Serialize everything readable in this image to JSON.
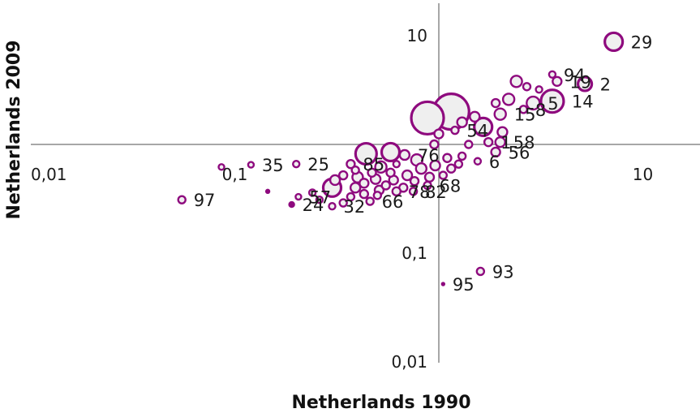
{
  "chart_data": {
    "type": "scatter",
    "title": "",
    "xlabel": "Netherlands 1990",
    "ylabel": "Netherlands 2009",
    "x_scale": "log",
    "y_scale": "log",
    "xlim": [
      0.01,
      20
    ],
    "ylim": [
      0.01,
      13
    ],
    "x_ticks": [
      {
        "value": 0.01,
        "label": "0,01"
      },
      {
        "value": 0.1,
        "label": "0,1"
      },
      {
        "value": 10,
        "label": "10"
      }
    ],
    "y_ticks": [
      {
        "value": 10,
        "label": "10"
      },
      {
        "value": 0.1,
        "label": "0,1"
      },
      {
        "value": 0.01,
        "label": "0,01"
      }
    ],
    "grid": false,
    "legend": "none",
    "marker_color": "#8e0a7e",
    "marker_fill": "#efefef",
    "points": [
      {
        "label": "29",
        "x": 7.2,
        "y": 8.8,
        "size": 22
      },
      {
        "label": "2",
        "x": 5.2,
        "y": 3.6,
        "size": 17
      },
      {
        "label": "94",
        "x": 3.6,
        "y": 4.4,
        "size": 8
      },
      {
        "label": "19",
        "x": 3.8,
        "y": 3.8,
        "size": 11
      },
      {
        "label": "",
        "x": 3.1,
        "y": 3.2,
        "size": 8
      },
      {
        "label": "",
        "x": 2.4,
        "y": 3.8,
        "size": 14
      },
      {
        "label": "",
        "x": 2.7,
        "y": 3.4,
        "size": 9
      },
      {
        "label": "14",
        "x": 3.6,
        "y": 2.5,
        "size": 28
      },
      {
        "label": "5",
        "x": 2.9,
        "y": 2.4,
        "size": 16
      },
      {
        "label": "",
        "x": 2.2,
        "y": 2.6,
        "size": 14
      },
      {
        "label": "",
        "x": 1.9,
        "y": 2.4,
        "size": 10
      },
      {
        "label": "8",
        "x": 2.6,
        "y": 2.1,
        "size": 9
      },
      {
        "label": "15",
        "x": 2.0,
        "y": 1.9,
        "size": 14
      },
      {
        "label": "",
        "x": 1.5,
        "y": 1.8,
        "size": 12
      },
      {
        "label": "",
        "x": 1.3,
        "y": 1.6,
        "size": 12
      },
      {
        "label": "",
        "x": 1.15,
        "y": 2.0,
        "size": 44
      },
      {
        "label": "",
        "x": 0.88,
        "y": 1.75,
        "size": 40
      },
      {
        "label": "",
        "x": 1.65,
        "y": 1.45,
        "size": 22
      },
      {
        "label": "54",
        "x": 1.2,
        "y": 1.35,
        "size": 9
      },
      {
        "label": "",
        "x": 1.0,
        "y": 1.25,
        "size": 11
      },
      {
        "label": "",
        "x": 2.05,
        "y": 1.3,
        "size": 12
      },
      {
        "label": "1",
        "x": 1.75,
        "y": 1.05,
        "size": 10
      },
      {
        "label": "58",
        "x": 2.0,
        "y": 1.05,
        "size": 12
      },
      {
        "label": "",
        "x": 1.4,
        "y": 1.0,
        "size": 9
      },
      {
        "label": "56",
        "x": 1.9,
        "y": 0.85,
        "size": 11
      },
      {
        "label": "",
        "x": 0.95,
        "y": 1.0,
        "size": 10
      },
      {
        "label": "",
        "x": 0.58,
        "y": 0.85,
        "size": 22
      },
      {
        "label": "",
        "x": 0.44,
        "y": 0.82,
        "size": 26
      },
      {
        "label": "76",
        "x": 0.68,
        "y": 0.8,
        "size": 12
      },
      {
        "label": "",
        "x": 0.78,
        "y": 0.72,
        "size": 14
      },
      {
        "label": "",
        "x": 1.1,
        "y": 0.75,
        "size": 10
      },
      {
        "label": "",
        "x": 1.3,
        "y": 0.78,
        "size": 9
      },
      {
        "label": "6",
        "x": 1.55,
        "y": 0.7,
        "size": 8
      },
      {
        "label": "",
        "x": 0.96,
        "y": 0.64,
        "size": 12
      },
      {
        "label": "",
        "x": 1.15,
        "y": 0.6,
        "size": 10
      },
      {
        "label": "",
        "x": 1.25,
        "y": 0.66,
        "size": 9
      },
      {
        "label": "",
        "x": 0.62,
        "y": 0.66,
        "size": 8
      },
      {
        "label": "",
        "x": 0.82,
        "y": 0.6,
        "size": 13
      },
      {
        "label": "",
        "x": 0.52,
        "y": 0.62,
        "size": 14
      },
      {
        "label": "85",
        "x": 0.37,
        "y": 0.66,
        "size": 10
      },
      {
        "label": "",
        "x": 0.39,
        "y": 0.58,
        "size": 9
      },
      {
        "label": "",
        "x": 0.47,
        "y": 0.55,
        "size": 10
      },
      {
        "label": "",
        "x": 0.58,
        "y": 0.55,
        "size": 10
      },
      {
        "label": "",
        "x": 0.7,
        "y": 0.52,
        "size": 12
      },
      {
        "label": "",
        "x": 0.9,
        "y": 0.5,
        "size": 11
      },
      {
        "label": "",
        "x": 1.05,
        "y": 0.52,
        "size": 9
      },
      {
        "label": "",
        "x": 0.34,
        "y": 0.52,
        "size": 10
      },
      {
        "label": "",
        "x": 0.4,
        "y": 0.5,
        "size": 13
      },
      {
        "label": "",
        "x": 0.49,
        "y": 0.48,
        "size": 12
      },
      {
        "label": "",
        "x": 0.6,
        "y": 0.47,
        "size": 11
      },
      {
        "label": "",
        "x": 0.76,
        "y": 0.46,
        "size": 10
      },
      {
        "label": "68",
        "x": 0.88,
        "y": 0.42,
        "size": 9
      },
      {
        "label": "",
        "x": 0.31,
        "y": 0.47,
        "size": 12
      },
      {
        "label": "",
        "x": 0.43,
        "y": 0.44,
        "size": 11
      },
      {
        "label": "",
        "x": 0.55,
        "y": 0.42,
        "size": 10
      },
      {
        "label": "",
        "x": 0.67,
        "y": 0.4,
        "size": 10
      },
      {
        "label": "",
        "x": 0.3,
        "y": 0.4,
        "size": 22
      },
      {
        "label": "",
        "x": 0.39,
        "y": 0.4,
        "size": 12
      },
      {
        "label": "",
        "x": 0.51,
        "y": 0.38,
        "size": 11
      },
      {
        "label": "78",
        "x": 0.62,
        "y": 0.37,
        "size": 10
      },
      {
        "label": "82",
        "x": 0.75,
        "y": 0.37,
        "size": 9
      },
      {
        "label": "",
        "x": 0.43,
        "y": 0.35,
        "size": 10
      },
      {
        "label": "",
        "x": 0.5,
        "y": 0.34,
        "size": 9
      },
      {
        "label": "",
        "x": 0.37,
        "y": 0.33,
        "size": 9
      },
      {
        "label": "66",
        "x": 0.46,
        "y": 0.3,
        "size": 9
      },
      {
        "label": "",
        "x": 0.34,
        "y": 0.29,
        "size": 9
      },
      {
        "label": "32",
        "x": 0.3,
        "y": 0.27,
        "size": 8
      },
      {
        "label": "",
        "x": 0.26,
        "y": 0.31,
        "size": 8
      },
      {
        "label": "57",
        "x": 0.205,
        "y": 0.33,
        "size": 7
      },
      {
        "label": "",
        "x": 0.24,
        "y": 0.36,
        "size": 8
      },
      {
        "label": "24",
        "x": 0.19,
        "y": 0.28,
        "size": 6
      },
      {
        "label": "25",
        "x": 0.2,
        "y": 0.66,
        "size": 8
      },
      {
        "label": "35",
        "x": 0.12,
        "y": 0.65,
        "size": 7
      },
      {
        "label": "",
        "x": 0.086,
        "y": 0.62,
        "size": 7
      },
      {
        "label": "",
        "x": 0.145,
        "y": 0.37,
        "size": 4
      },
      {
        "label": "97",
        "x": 0.055,
        "y": 0.31,
        "size": 9
      },
      {
        "label": "93",
        "x": 1.6,
        "y": 0.068,
        "size": 9
      },
      {
        "label": "95",
        "x": 1.05,
        "y": 0.052,
        "size": 3
      }
    ]
  }
}
